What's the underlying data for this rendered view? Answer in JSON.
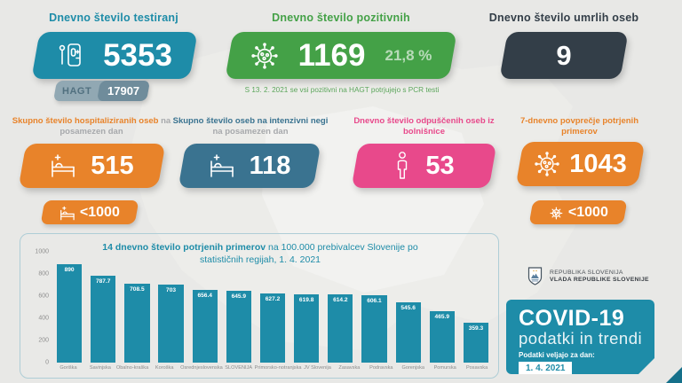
{
  "cards": {
    "tests": {
      "title": "Dnevno število testiranj",
      "value": "5353",
      "hagt_label": "HAGT",
      "hagt_value": "17907",
      "color": "#1e8ca8"
    },
    "positive": {
      "title": "Dnevno število pozitivnih",
      "value": "1169",
      "percent": "21,8 %",
      "note": "S 13. 2. 2021 se vsi pozitivni na HAGT potrjujejo s PCR testi",
      "color": "#44a147"
    },
    "deaths": {
      "title": "Dnevno število umrlih oseb",
      "value": "9",
      "color": "#333e48"
    },
    "hospitalized": {
      "title_bold": "Skupno število hospitaliziranih oseb",
      "title_gray": " na posamezen dan",
      "value": "515",
      "badge": "<1000",
      "color": "#e8832a"
    },
    "icu": {
      "title_bold": "Skupno število oseb na intenzivni negi",
      "title_gray": " na posamezen dan",
      "value": "118",
      "color": "#3a7390"
    },
    "discharged": {
      "title": "Dnevno število odpuščenih oseb iz bolnišnice",
      "value": "53",
      "color": "#e8498b"
    },
    "avg7": {
      "title": "7-dnevno povprečje potrjenih primerov",
      "value": "1043",
      "badge": "<1000",
      "color": "#e8832a"
    }
  },
  "chart_data": {
    "type": "bar",
    "title_bold": "14 dnevno število potrjenih primerov",
    "title_rest": " na 100.000 prebivalcev Slovenije po statističnih regijah, 1. 4. 2021",
    "categories": [
      "Goriška",
      "Savinjska",
      "Obalno-kraška",
      "Koroška",
      "Osrednjeslovenska",
      "SLOVENIJA",
      "Primorsko-notranjska",
      "JV Slovenija",
      "Zasavska",
      "Podravska",
      "Gorenjska",
      "Pomurska",
      "Posavska"
    ],
    "values": [
      890,
      787.7,
      708.5,
      703,
      656.4,
      645.9,
      627.2,
      619.8,
      614.2,
      606.1,
      545.6,
      465.9,
      359.3
    ],
    "value_labels": [
      "890",
      "787.7",
      "708.5",
      "703",
      "656.4",
      "645.9",
      "627.2",
      "619.8",
      "614.2",
      "606.1",
      "545.6",
      "465.9",
      "359.3"
    ],
    "ylim": [
      0,
      1000
    ],
    "yticks": [
      0,
      200,
      400,
      600,
      800,
      1000
    ],
    "bar_color": "#1e8ca8",
    "grid": false,
    "legend": "none"
  },
  "footer": {
    "gov_line1": "REPUBLIKA SLOVENIJA",
    "gov_line2": "VLADA REPUBLIKE SLOVENIJE",
    "covid_title": "COVID-19",
    "covid_subtitle": "podatki in trendi",
    "date_label": "Podatki veljajo za dan:",
    "date_value": "1. 4. 2021"
  },
  "icons": {
    "tests": "antigen-test-icon",
    "positive": "virus-icon",
    "hospitalized": "hospital-bed-icon",
    "icu": "hospital-bed-icon",
    "discharged": "person-icon",
    "avg7": "virus-icon",
    "government": "slovenia-coat-of-arms-icon"
  },
  "colors": {
    "teal": "#1e8ca8",
    "green": "#44a147",
    "dark": "#333e48",
    "orange": "#e8832a",
    "steel_blue": "#3a7390",
    "pink": "#e8498b",
    "background": "#e8e8e6",
    "gray_text": "#a7a9ac",
    "hagt_left": "#91a8b3",
    "hagt_right": "#6f8c9b"
  }
}
